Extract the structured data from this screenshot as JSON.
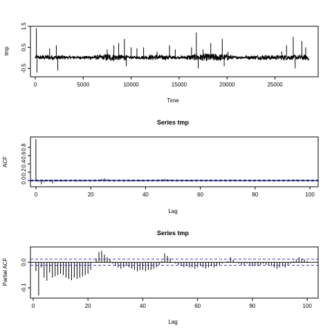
{
  "chart_data": [
    {
      "type": "line",
      "title": "",
      "xlabel": "Time",
      "ylabel": "tmp",
      "xlim": [
        -500,
        29500
      ],
      "ylim": [
        -0.9,
        1.5
      ],
      "xticks": [
        0,
        5000,
        10000,
        15000,
        20000,
        25000
      ],
      "yticks": [
        -0.5,
        0.5,
        1.5
      ],
      "n": 28500,
      "spikes": [
        {
          "x": 120,
          "y": 1.4
        },
        {
          "x": 180,
          "y": -0.7
        },
        {
          "x": 1500,
          "y": 0.45
        },
        {
          "x": 2200,
          "y": 0.6
        },
        {
          "x": 2350,
          "y": -0.6
        },
        {
          "x": 7500,
          "y": 0.4
        },
        {
          "x": 8200,
          "y": 0.6
        },
        {
          "x": 8700,
          "y": 0.7
        },
        {
          "x": 9300,
          "y": 0.9
        },
        {
          "x": 9500,
          "y": -0.4
        },
        {
          "x": 10000,
          "y": 0.5
        },
        {
          "x": 10600,
          "y": 0.45
        },
        {
          "x": 11300,
          "y": 0.5
        },
        {
          "x": 12700,
          "y": 0.3
        },
        {
          "x": 14000,
          "y": 0.6
        },
        {
          "x": 14600,
          "y": 0.4
        },
        {
          "x": 16300,
          "y": 0.5
        },
        {
          "x": 16800,
          "y": 1.2
        },
        {
          "x": 17000,
          "y": -0.5
        },
        {
          "x": 17500,
          "y": 0.4
        },
        {
          "x": 18300,
          "y": 0.7
        },
        {
          "x": 19500,
          "y": 0.9
        },
        {
          "x": 19700,
          "y": -0.4
        },
        {
          "x": 20100,
          "y": 0.3
        },
        {
          "x": 25700,
          "y": 0.3
        },
        {
          "x": 26200,
          "y": 0.6
        },
        {
          "x": 26900,
          "y": 1.0
        },
        {
          "x": 27100,
          "y": -0.5
        },
        {
          "x": 27800,
          "y": 0.8
        },
        {
          "x": 28200,
          "y": 0.5
        }
      ]
    },
    {
      "type": "bar",
      "title": "Series  tmp",
      "xlabel": "Lag",
      "ylabel": "ACF",
      "xlim": [
        -2,
        103
      ],
      "ylim": [
        -0.15,
        1.05
      ],
      "xticks": [
        0,
        20,
        40,
        60,
        80,
        100
      ],
      "yticks": [
        0.0,
        0.2,
        0.4,
        0.6,
        0.8
      ],
      "conf_level": 0.012,
      "lags": [
        0,
        1,
        2,
        3,
        4,
        5,
        6,
        7,
        8,
        9,
        10,
        11,
        12,
        13,
        14,
        15,
        16,
        17,
        18,
        19,
        20,
        21,
        22,
        23,
        24,
        25,
        26,
        27,
        28,
        29,
        30,
        31,
        32,
        33,
        34,
        35,
        36,
        37,
        38,
        39,
        40,
        41,
        42,
        43,
        44,
        45,
        46,
        47,
        48,
        49,
        50,
        51,
        52,
        53,
        54,
        55,
        56,
        57,
        58,
        59,
        60,
        61,
        62,
        63,
        64,
        65,
        66,
        67,
        68,
        69,
        70,
        71,
        72,
        73,
        74,
        75,
        76,
        77,
        78,
        79,
        80,
        81,
        82,
        83,
        84,
        85,
        86,
        87,
        88,
        89,
        90,
        91,
        92,
        93,
        94,
        95,
        96,
        97,
        98,
        99,
        100
      ],
      "values": [
        1.0,
        -0.03,
        -0.09,
        -0.04,
        -0.02,
        -0.03,
        -0.06,
        -0.03,
        -0.02,
        -0.03,
        -0.02,
        -0.02,
        -0.01,
        -0.02,
        -0.02,
        -0.02,
        -0.01,
        -0.02,
        -0.01,
        -0.01,
        -0.01,
        0.0,
        0.01,
        0.02,
        0.04,
        0.05,
        0.03,
        0.02,
        0.01,
        0.0,
        -0.01,
        -0.01,
        -0.02,
        -0.01,
        -0.01,
        -0.02,
        -0.01,
        -0.01,
        -0.02,
        -0.01,
        -0.01,
        -0.01,
        0.0,
        0.01,
        0.01,
        0.02,
        0.03,
        0.04,
        0.03,
        0.02,
        0.01,
        0.0,
        -0.01,
        -0.01,
        -0.01,
        -0.01,
        -0.02,
        -0.01,
        -0.01,
        -0.01,
        0.0,
        -0.01,
        -0.01,
        -0.01,
        0.0,
        0.0,
        0.01,
        0.01,
        0.01,
        0.0,
        0.01,
        0.02,
        0.02,
        0.01,
        0.0,
        0.0,
        -0.01,
        0.0,
        -0.01,
        -0.01,
        0.0,
        0.0,
        -0.01,
        -0.01,
        0.0,
        0.0,
        0.0,
        0.0,
        -0.01,
        -0.01,
        -0.01,
        0.0,
        0.0,
        0.01,
        0.01,
        0.02,
        0.02,
        0.01,
        0.01,
        0.0,
        0.0
      ]
    },
    {
      "type": "bar",
      "title": "Series  tmp",
      "xlabel": "Lag",
      "ylabel": "Partial ACF",
      "xlim": [
        -1,
        104
      ],
      "ylim": [
        -0.14,
        0.06
      ],
      "xticks": [
        0,
        20,
        40,
        60,
        80,
        100
      ],
      "yticks": [
        -0.1,
        0.0
      ],
      "conf_level": 0.012,
      "lags": [
        1,
        2,
        3,
        4,
        5,
        6,
        7,
        8,
        9,
        10,
        11,
        12,
        13,
        14,
        15,
        16,
        17,
        18,
        19,
        20,
        21,
        22,
        23,
        24,
        25,
        26,
        27,
        28,
        29,
        30,
        31,
        32,
        33,
        34,
        35,
        36,
        37,
        38,
        39,
        40,
        41,
        42,
        43,
        44,
        45,
        46,
        47,
        48,
        49,
        50,
        51,
        52,
        53,
        54,
        55,
        56,
        57,
        58,
        59,
        60,
        61,
        62,
        63,
        64,
        65,
        66,
        67,
        68,
        69,
        70,
        71,
        72,
        73,
        74,
        75,
        76,
        77,
        78,
        79,
        80,
        81,
        82,
        83,
        84,
        85,
        86,
        87,
        88,
        89,
        90,
        91,
        92,
        93,
        94,
        95,
        96,
        97,
        98,
        99,
        100
      ],
      "values": [
        -0.035,
        -0.13,
        -0.02,
        -0.06,
        -0.072,
        -0.04,
        -0.06,
        -0.055,
        -0.05,
        -0.045,
        -0.05,
        -0.06,
        -0.065,
        -0.07,
        -0.06,
        -0.065,
        -0.06,
        -0.055,
        -0.05,
        -0.045,
        -0.03,
        0.0,
        0.015,
        0.04,
        0.045,
        0.03,
        0.02,
        0.01,
        -0.005,
        -0.015,
        -0.02,
        -0.025,
        -0.02,
        -0.015,
        -0.02,
        -0.025,
        -0.03,
        -0.035,
        -0.03,
        -0.03,
        -0.035,
        -0.03,
        -0.03,
        -0.025,
        -0.02,
        -0.01,
        0.005,
        0.035,
        0.025,
        0.015,
        0.0,
        -0.005,
        -0.01,
        -0.015,
        -0.02,
        -0.015,
        -0.02,
        -0.02,
        -0.025,
        -0.02,
        -0.015,
        -0.02,
        -0.025,
        -0.02,
        -0.015,
        -0.02,
        -0.015,
        -0.01,
        -0.005,
        0.0,
        0.005,
        0.02,
        0.01,
        0.0,
        -0.005,
        -0.01,
        -0.01,
        -0.005,
        -0.01,
        -0.015,
        -0.01,
        -0.015,
        -0.01,
        -0.005,
        -0.01,
        -0.01,
        -0.015,
        -0.02,
        -0.025,
        -0.02,
        -0.015,
        -0.02,
        -0.01,
        -0.005,
        0.005,
        0.01,
        0.02,
        0.015,
        0.01,
        0.005
      ]
    }
  ]
}
